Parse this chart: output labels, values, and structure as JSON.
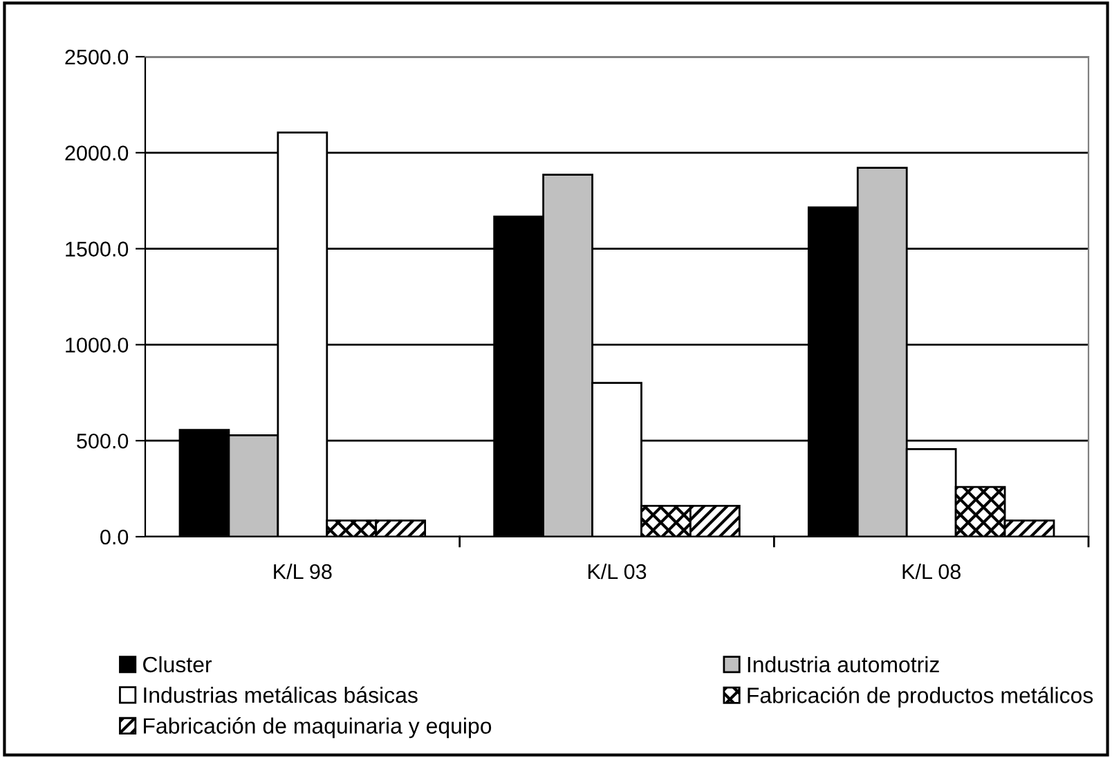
{
  "chart_data": {
    "type": "bar",
    "categories": [
      "K/L 98",
      "K/L 03",
      "K/L 08"
    ],
    "series": [
      {
        "name": "Cluster",
        "color": "#000000",
        "values": [
          556,
          1667,
          1715
        ]
      },
      {
        "name": "Industria automotriz",
        "color": "#c0c0c0",
        "values": [
          528,
          1885,
          1921
        ]
      },
      {
        "name": "Industrias metálicas básicas",
        "color": "#ffffff",
        "values": [
          2105,
          801,
          456
        ]
      },
      {
        "name": "Fabricación de productos metálicos",
        "color": "#000000",
        "values": [
          84,
          161,
          259
        ]
      },
      {
        "name": "Fabricación de maquinaria y equipo",
        "color": "#000000",
        "values": [
          84,
          161,
          84
        ]
      }
    ],
    "ylim": [
      0,
      2500
    ],
    "yticks": [
      {
        "value": 0,
        "label": "0.0"
      },
      {
        "value": 500,
        "label": "500.0"
      },
      {
        "value": 1000,
        "label": "1000.0"
      },
      {
        "value": 1500,
        "label": "1500.0"
      },
      {
        "value": 2000,
        "label": "2000.0"
      },
      {
        "value": 2500,
        "label": "2500.0"
      }
    ],
    "grid": "y",
    "legend": "bottom"
  }
}
